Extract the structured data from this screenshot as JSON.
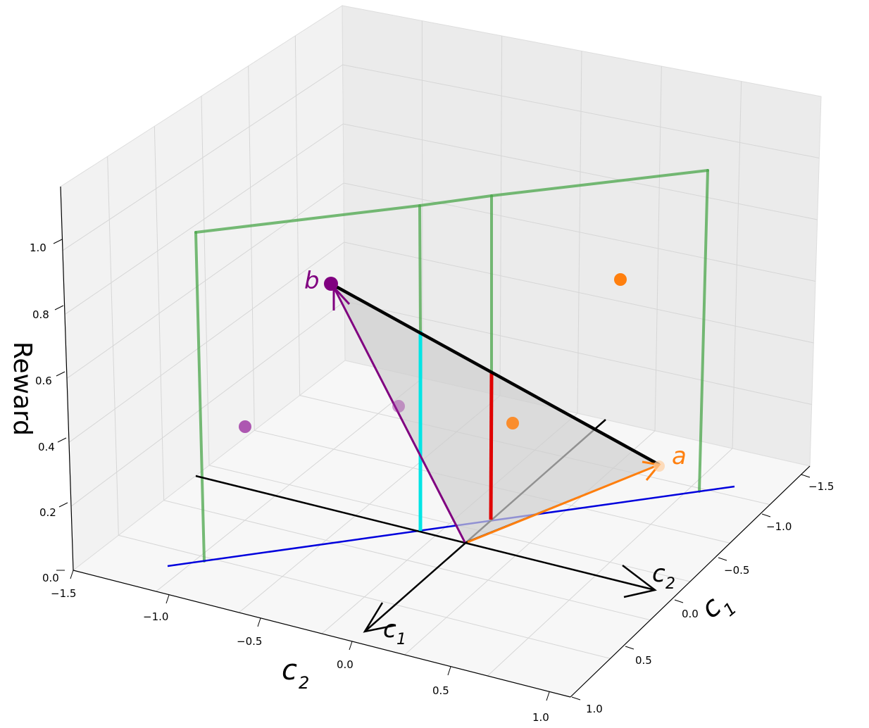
{
  "chart_data": {
    "type": "scatter",
    "title": "",
    "view": "3d",
    "axes": {
      "x": {
        "label": "c",
        "sub": "2",
        "ticks": [
          "−1.5",
          "−1.0",
          "−0.5",
          "0.0",
          "0.5",
          "1.0"
        ],
        "range": [
          -1.5,
          1.0
        ]
      },
      "y": {
        "label": "c",
        "sub": "1",
        "ticks": [
          "−1.5",
          "−1.0",
          "−0.5",
          "0.0",
          "0.5",
          "1.0"
        ],
        "range": [
          -1.5,
          1.0
        ]
      },
      "z": {
        "label": "Reward",
        "ticks": [
          "0.0",
          "0.2",
          "0.4",
          "0.6",
          "0.8",
          "1.0"
        ],
        "range": [
          0.0,
          1.1
        ]
      }
    },
    "grid": true,
    "points": [
      {
        "name": "b",
        "color": "#800080",
        "c2": -0.6,
        "c1": -0.6,
        "reward": 0.95
      },
      {
        "name": "a",
        "color": "#ff7f0e",
        "c2": 0.6,
        "c1": -0.6,
        "reward": 0.35
      },
      {
        "color": "#ff7f0e",
        "c2": 0.6,
        "c1": -1.5,
        "reward": 0.9
      },
      {
        "color": "#ff7f0e",
        "c2": 0.1,
        "c1": -0.6,
        "reward": 0.5
      },
      {
        "color": "#9b30a0",
        "c2": -0.6,
        "c1": -0.4,
        "reward": 0.5
      },
      {
        "color": "#9b30a0",
        "c2": -1.2,
        "c1": 0.2,
        "reward": 0.5
      }
    ],
    "annotations": [
      {
        "id": "b",
        "text": "b",
        "color": "#800080"
      },
      {
        "id": "a",
        "text": "a",
        "color": "#ff7f0e"
      },
      {
        "id": "c1-arrow",
        "text": "c",
        "sub": "1",
        "color": "#000000"
      },
      {
        "id": "c2-arrow",
        "text": "c",
        "sub": "2",
        "color": "#000000"
      }
    ],
    "colors": {
      "green_frame": "#4aa64a",
      "cyan_bar": "#00e5e5",
      "red_bar": "#e00000",
      "blue_line": "#0000dd",
      "purple_vector": "#800080",
      "orange_vector": "#ff7f0e",
      "triangle_fill": "#cfcfcf"
    }
  }
}
